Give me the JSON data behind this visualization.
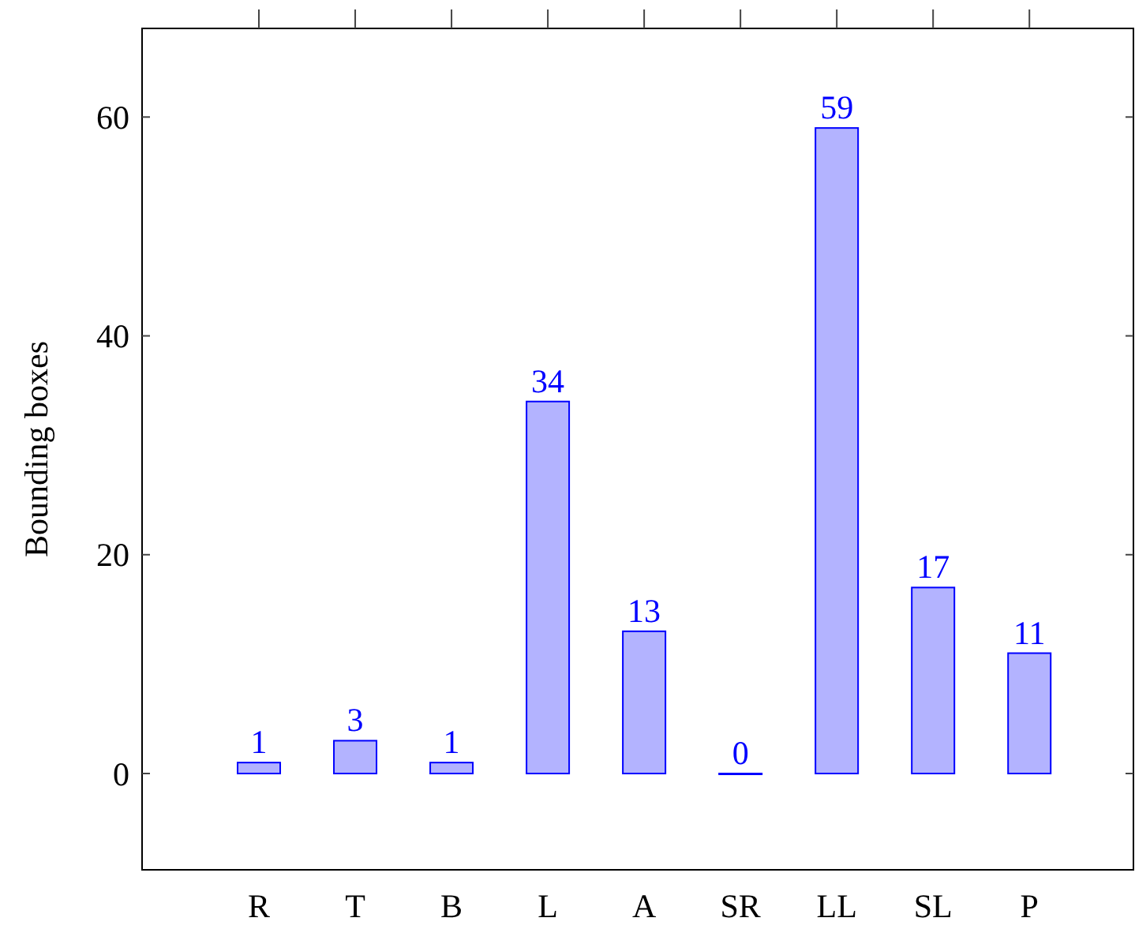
{
  "chart_data": {
    "type": "bar",
    "ylabel": "Bounding boxes",
    "categories": [
      "R",
      "T",
      "B",
      "L",
      "A",
      "SR",
      "LL",
      "SL",
      "P"
    ],
    "series": [
      {
        "color": "#0000ff",
        "values": [
          1,
          3,
          1,
          34,
          13,
          0,
          59,
          17,
          11
        ]
      }
    ],
    "ylim": [
      -8.8,
      68.1
    ],
    "yticks": [
      0,
      20,
      40,
      60
    ],
    "data_labels": true
  }
}
